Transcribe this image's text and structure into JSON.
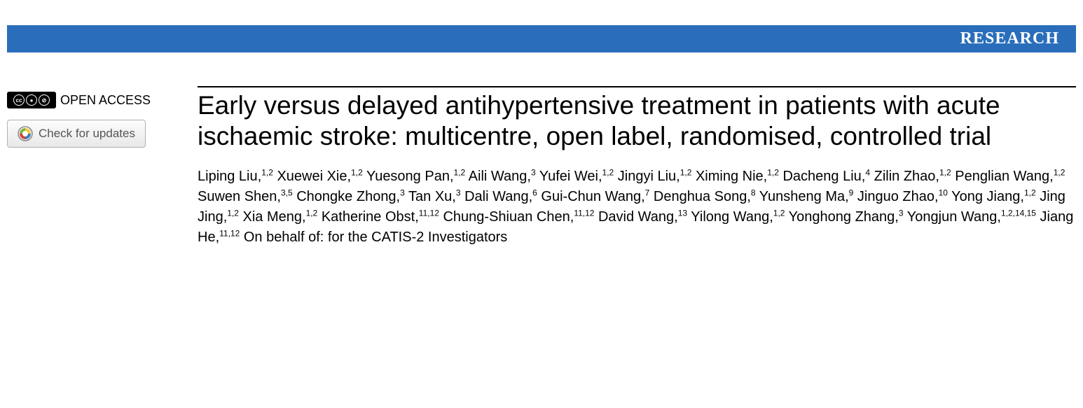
{
  "banner": {
    "label": "RESEARCH",
    "bg_color": "#2a6ebb",
    "text_color": "#ffffff"
  },
  "sidebar": {
    "open_access_label": "OPEN ACCESS",
    "cc_glyphs": [
      "cc",
      "⊙",
      "⊘"
    ],
    "updates_label": "Check for updates"
  },
  "article": {
    "title": "Early versus delayed antihypertensive treatment in patients with acute ischaemic stroke: multicentre, open label, randomised, controlled trial",
    "authors": [
      {
        "name": "Liping Liu",
        "affil": "1,2"
      },
      {
        "name": "Xuewei Xie",
        "affil": "1,2"
      },
      {
        "name": "Yuesong Pan",
        "affil": "1,2"
      },
      {
        "name": "Aili Wang",
        "affil": "3"
      },
      {
        "name": "Yufei Wei",
        "affil": "1,2"
      },
      {
        "name": "Jingyi Liu",
        "affil": "1,2"
      },
      {
        "name": "Ximing Nie",
        "affil": "1,2"
      },
      {
        "name": "Dacheng Liu",
        "affil": "4"
      },
      {
        "name": "Zilin Zhao",
        "affil": "1,2"
      },
      {
        "name": "Penglian Wang",
        "affil": "1,2"
      },
      {
        "name": "Suwen Shen",
        "affil": "3,5"
      },
      {
        "name": "Chongke Zhong",
        "affil": "3"
      },
      {
        "name": "Tan Xu",
        "affil": "3"
      },
      {
        "name": "Dali Wang",
        "affil": "6"
      },
      {
        "name": "Gui-Chun Wang",
        "affil": "7"
      },
      {
        "name": "Denghua Song",
        "affil": "8"
      },
      {
        "name": "Yunsheng Ma",
        "affil": "9"
      },
      {
        "name": "Jinguo Zhao",
        "affil": "10"
      },
      {
        "name": "Yong Jiang",
        "affil": "1,2"
      },
      {
        "name": "Jing Jing",
        "affil": "1,2"
      },
      {
        "name": "Xia Meng",
        "affil": "1,2"
      },
      {
        "name": "Katherine Obst",
        "affil": "11,12"
      },
      {
        "name": "Chung-Shiuan Chen",
        "affil": "11,12"
      },
      {
        "name": "David Wang",
        "affil": "13"
      },
      {
        "name": "Yilong Wang",
        "affil": "1,2"
      },
      {
        "name": "Yonghong Zhang",
        "affil": "3"
      },
      {
        "name": "Yongjun Wang",
        "affil": "1,2,14,15"
      },
      {
        "name": "Jiang He",
        "affil": "11,12"
      }
    ],
    "on_behalf": "On behalf of: for the CATIS-2 Investigators"
  },
  "style": {
    "title_fontsize": 37,
    "author_fontsize": 20,
    "banner_fontsize": 24
  }
}
